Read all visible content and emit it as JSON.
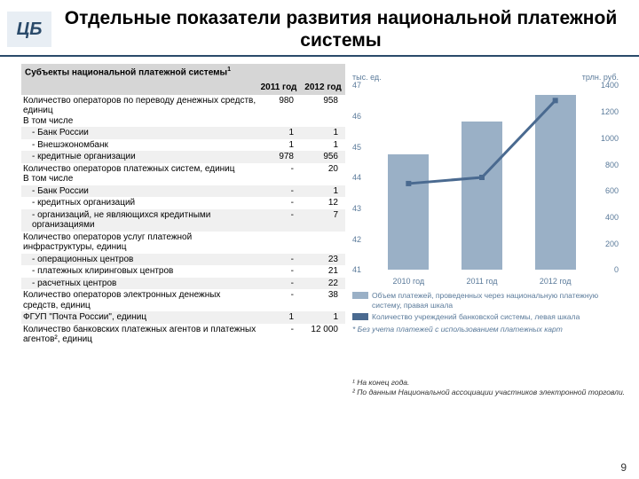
{
  "title": "Отдельные показатели развития национальной платежной системы",
  "logo_text": "ЦБ",
  "table": {
    "header": "Субъекты национальной платежной системы",
    "header_sup": "1",
    "col1": "2011 год",
    "col2": "2012 год",
    "rows": [
      {
        "label": "Количество операторов по переводу денежных средств, единиц\nВ том числе",
        "c1": "980",
        "c2": "958",
        "indent": 0
      },
      {
        "label": "- Банк России",
        "c1": "1",
        "c2": "1",
        "indent": 1
      },
      {
        "label": "- Внешэкономбанк",
        "c1": "1",
        "c2": "1",
        "indent": 1
      },
      {
        "label": "- кредитные организации",
        "c1": "978",
        "c2": "956",
        "indent": 1
      },
      {
        "label": "Количество операторов платежных систем, единиц\nВ том числе",
        "c1": "-",
        "c2": "20",
        "indent": 0
      },
      {
        "label": "- Банк России",
        "c1": "-",
        "c2": "1",
        "indent": 1
      },
      {
        "label": "- кредитных организаций",
        "c1": "-",
        "c2": "12",
        "indent": 1
      },
      {
        "label": "- организаций, не являющихся кредитными организациями",
        "c1": "-",
        "c2": "7",
        "indent": 1
      },
      {
        "label": "Количество операторов услуг платежной инфраструктуры, единиц",
        "c1": "",
        "c2": "",
        "indent": 0
      },
      {
        "label": "- операционных центров",
        "c1": "-",
        "c2": "23",
        "indent": 1
      },
      {
        "label": "- платежных клиринговых центров",
        "c1": "-",
        "c2": "21",
        "indent": 1
      },
      {
        "label": "- расчетных центров",
        "c1": "-",
        "c2": "22",
        "indent": 1
      },
      {
        "label": "Количество операторов электронных денежных средств, единиц",
        "c1": "-",
        "c2": "38",
        "indent": 0
      },
      {
        "label": "ФГУП \"Почта России\", единиц",
        "c1": "1",
        "c2": "1",
        "indent": 0
      },
      {
        "label": "Количество банковских платежных агентов и платежных агентов², единиц",
        "c1": "-",
        "c2": "12 000",
        "indent": 0
      }
    ]
  },
  "chart": {
    "ylabel_left": "тыс. ед.",
    "ylabel_right": "трлн. руб.",
    "left_ticks": [
      41,
      42,
      43,
      44,
      45,
      46,
      47
    ],
    "right_ticks": [
      0,
      200,
      400,
      600,
      800,
      1000,
      1200,
      1400
    ],
    "x_labels": [
      "2010 год",
      "2011 год",
      "2012 год"
    ],
    "bars": {
      "values": [
        880,
        1130,
        1330
      ],
      "ymax": 1400,
      "color": "#9ab0c6"
    },
    "line": {
      "values": [
        43.8,
        44.0,
        46.5
      ],
      "ymin": 41,
      "ymax": 47,
      "color": "#4a6a90"
    },
    "legend1": "Объем платежей, проведенных через национальную платежную систему, правая шкала",
    "legend2": "Количество учреждений банковской системы, левая шкала",
    "note": "* Без учета платежей с использованием платежных карт"
  },
  "footnotes": {
    "f1": "¹ На конец года.",
    "f2": "² По данным Национальной ассоциации участников электронной торговли."
  },
  "page": "9"
}
